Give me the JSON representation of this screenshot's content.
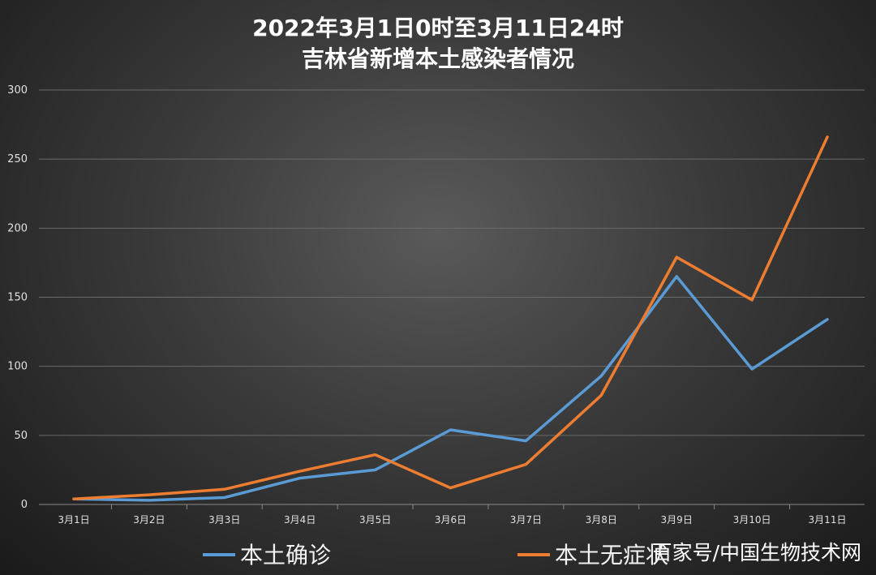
{
  "chart_data": {
    "type": "line",
    "title": "2022年3月1日0时至3月11日24时",
    "subtitle": "吉林省新增本土感染者情况",
    "categories": [
      "3月1日",
      "3月2日",
      "3月3日",
      "3月4日",
      "3月5日",
      "3月6日",
      "3月7日",
      "3月8日",
      "3月9日",
      "3月10日",
      "3月11日"
    ],
    "ylim": [
      0,
      300
    ],
    "yticks": [
      0,
      50,
      100,
      150,
      200,
      250,
      300
    ],
    "grid": true,
    "legend_position": "bottom",
    "series": [
      {
        "name": "本土确诊",
        "color": "#5b9bd5",
        "values": [
          4,
          3,
          5,
          19,
          25,
          54,
          46,
          93,
          165,
          98,
          134
        ]
      },
      {
        "name": "本土无症状",
        "color": "#ed7d31",
        "values": [
          4,
          7,
          11,
          24,
          36,
          12,
          29,
          79,
          179,
          148,
          266
        ]
      }
    ]
  },
  "watermark": "百家号/中国生物技术网"
}
